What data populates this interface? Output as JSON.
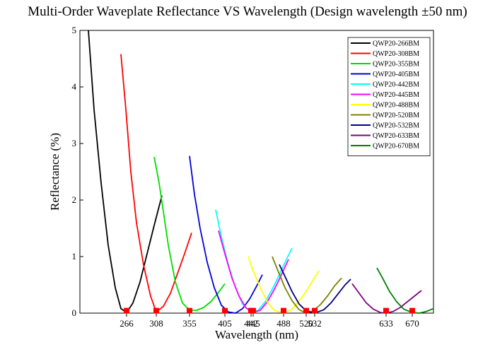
{
  "chart_data": {
    "type": "line",
    "title": "Multi-Order Waveplate Reflectance VS Wavelength (Design wavelength ±50 nm)",
    "xlabel": "Wavelength (nm)",
    "ylabel": "Reflectance (%)",
    "xlim": [
      200,
      700
    ],
    "ylim": [
      0,
      5
    ],
    "y_ticks": [
      0,
      1,
      2,
      3,
      4,
      5
    ],
    "x_ticks": [
      266,
      308,
      355,
      405,
      442,
      445,
      488,
      520,
      532,
      633,
      670
    ],
    "grid": false,
    "legend_position": "top-right",
    "series": [
      {
        "name": "QWP20-266BM",
        "color": "#000000",
        "x": [
          212,
          220,
          230,
          240,
          250,
          258,
          266,
          275,
          285,
          295,
          305,
          316
        ],
        "y": [
          5.0,
          3.6,
          2.3,
          1.2,
          0.45,
          0.08,
          0.01,
          0.18,
          0.55,
          1.05,
          1.55,
          2.08
        ]
      },
      {
        "name": "QWP20-308BM",
        "color": "#ff0000",
        "x": [
          258,
          265,
          272,
          280,
          290,
          300,
          308,
          318,
          328,
          338,
          348,
          358
        ],
        "y": [
          4.58,
          3.6,
          2.5,
          1.6,
          0.85,
          0.3,
          0.02,
          0.12,
          0.35,
          0.7,
          1.05,
          1.42
        ]
      },
      {
        "name": "QWP20-355BM",
        "color": "#00dd00",
        "x": [
          305,
          312,
          318,
          325,
          335,
          345,
          355,
          365,
          375,
          385,
          395,
          405
        ],
        "y": [
          2.76,
          2.3,
          1.8,
          1.2,
          0.55,
          0.18,
          0.05,
          0.05,
          0.1,
          0.2,
          0.35,
          0.52
        ]
      },
      {
        "name": "QWP20-405BM",
        "color": "#0000dd",
        "x": [
          355,
          362,
          370,
          380,
          390,
          400,
          410,
          420,
          430,
          440,
          450,
          458
        ],
        "y": [
          2.78,
          2.1,
          1.5,
          0.9,
          0.45,
          0.14,
          0.02,
          0.0,
          0.08,
          0.25,
          0.48,
          0.68
        ]
      },
      {
        "name": "QWP20-442BM",
        "color": "#00ffff",
        "x": [
          392,
          400,
          410,
          420,
          430,
          442,
          452,
          462,
          472,
          482,
          492,
          500
        ],
        "y": [
          1.83,
          1.35,
          0.85,
          0.45,
          0.16,
          0.01,
          0.05,
          0.2,
          0.42,
          0.68,
          0.95,
          1.15
        ]
      },
      {
        "name": "QWP20-445BM",
        "color": "#ff00ff",
        "x": [
          396,
          405,
          415,
          425,
          435,
          445,
          455,
          465,
          475,
          485,
          495
        ],
        "y": [
          1.46,
          1.05,
          0.62,
          0.3,
          0.09,
          0.01,
          0.05,
          0.2,
          0.42,
          0.68,
          0.95
        ]
      },
      {
        "name": "QWP20-488BM",
        "color": "#ffff00",
        "x": [
          438,
          445,
          455,
          465,
          475,
          488,
          498,
          508,
          518,
          528,
          538
        ],
        "y": [
          1.0,
          0.75,
          0.45,
          0.2,
          0.05,
          0.0,
          0.05,
          0.18,
          0.35,
          0.55,
          0.75
        ]
      },
      {
        "name": "QWP20-520BM",
        "color": "#808000",
        "x": [
          472,
          480,
          490,
          500,
          510,
          520,
          530,
          540,
          550,
          560,
          570
        ],
        "y": [
          1.0,
          0.75,
          0.45,
          0.22,
          0.06,
          0.0,
          0.04,
          0.15,
          0.3,
          0.48,
          0.62
        ]
      },
      {
        "name": "QWP20-532BM",
        "color": "#000080",
        "x": [
          482,
          490,
          500,
          510,
          520,
          532,
          545,
          555,
          565,
          575,
          583
        ],
        "y": [
          0.86,
          0.65,
          0.38,
          0.16,
          0.04,
          0.0,
          0.06,
          0.18,
          0.34,
          0.5,
          0.6
        ]
      },
      {
        "name": "QWP20-633BM",
        "color": "#800080",
        "x": [
          585,
          595,
          605,
          615,
          625,
          633,
          643,
          653,
          663,
          673,
          683
        ],
        "y": [
          0.52,
          0.35,
          0.18,
          0.07,
          0.01,
          0.0,
          0.03,
          0.1,
          0.2,
          0.3,
          0.4
        ]
      },
      {
        "name": "QWP20-670BM",
        "color": "#008000",
        "x": [
          620,
          628,
          638,
          648,
          658,
          670,
          680,
          690,
          700
        ],
        "y": [
          0.8,
          0.62,
          0.38,
          0.2,
          0.07,
          0.01,
          0.0,
          0.03,
          0.08
        ]
      }
    ],
    "design_markers": {
      "color": "#ff0000",
      "x": [
        266,
        308,
        355,
        405,
        442,
        445,
        488,
        520,
        532,
        633,
        670
      ],
      "y": [
        0.03,
        0.03,
        0.03,
        0.03,
        0.03,
        0.03,
        0.03,
        0.03,
        0.03,
        0.03,
        0.03
      ]
    }
  }
}
